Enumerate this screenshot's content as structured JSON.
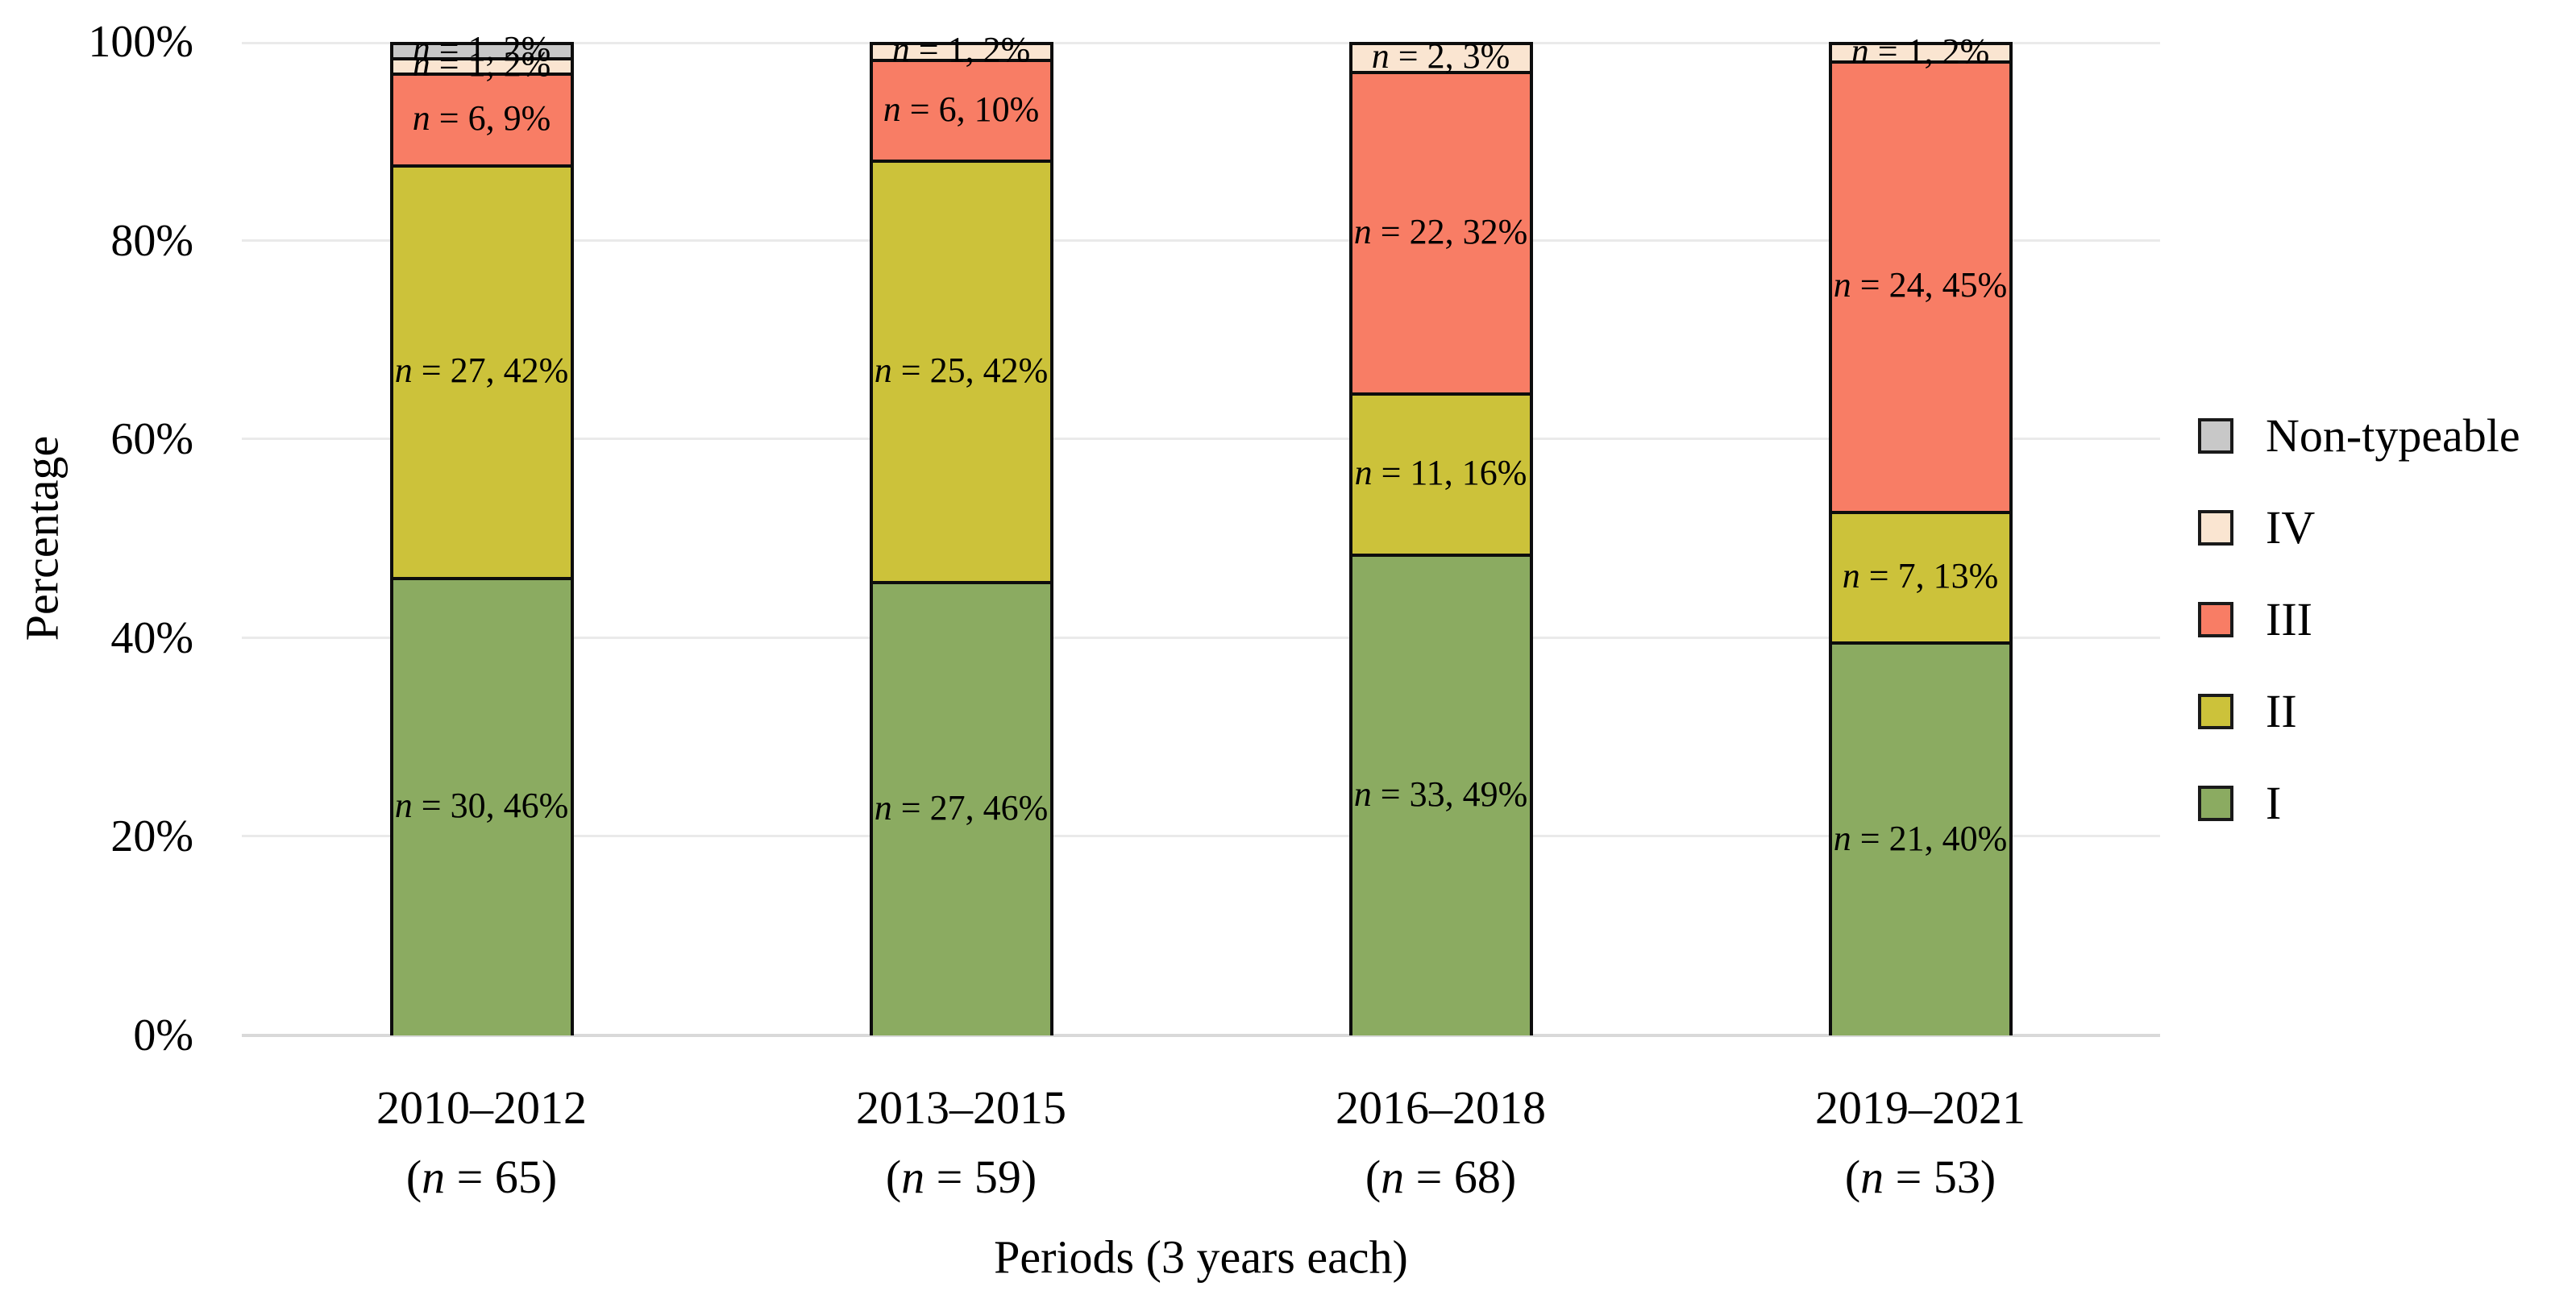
{
  "figure": {
    "background": "#ffffff",
    "grid_color": "#eaeaea",
    "axis_line_color": "#d9d9d9",
    "bar_border_color": "#0d0d0d"
  },
  "chart_data": {
    "type": "bar",
    "stacked": true,
    "percent_stacked": true,
    "title": "",
    "xlabel": "Periods (3 years each)",
    "ylabel": "Percentage",
    "y_ticks": [
      "0%",
      "20%",
      "40%",
      "60%",
      "80%",
      "100%"
    ],
    "ylim": [
      0,
      100
    ],
    "grid": "horizontal lines every 20%",
    "legend_position": "right",
    "legend_order": [
      "Non-typeable",
      "IV",
      "III",
      "II",
      "I"
    ],
    "segment_label_format": "n = {n}, {pct}",
    "category_sublabel_format": "(n = {n})",
    "categories": [
      {
        "period": "2010–2012",
        "total_n": 65
      },
      {
        "period": "2013–2015",
        "total_n": 59
      },
      {
        "period": "2016–2018",
        "total_n": 68
      },
      {
        "period": "2019–2021",
        "total_n": 53
      }
    ],
    "series": [
      {
        "name": "I",
        "color": "#8bab61",
        "values": [
          {
            "n": 30,
            "pct": "46%"
          },
          {
            "n": 27,
            "pct": "46%"
          },
          {
            "n": 33,
            "pct": "49%"
          },
          {
            "n": 21,
            "pct": "40%"
          }
        ]
      },
      {
        "name": "II",
        "color": "#ccc23a",
        "values": [
          {
            "n": 27,
            "pct": "42%"
          },
          {
            "n": 25,
            "pct": "42%"
          },
          {
            "n": 11,
            "pct": "16%"
          },
          {
            "n": 7,
            "pct": "13%"
          }
        ]
      },
      {
        "name": "III",
        "color": "#f87d65",
        "values": [
          {
            "n": 6,
            "pct": "9%"
          },
          {
            "n": 6,
            "pct": "10%"
          },
          {
            "n": 22,
            "pct": "32%"
          },
          {
            "n": 24,
            "pct": "45%"
          }
        ]
      },
      {
        "name": "IV",
        "color": "#fae5d1",
        "values": [
          {
            "n": 1,
            "pct": "2%"
          },
          {
            "n": 1,
            "pct": "2%"
          },
          {
            "n": 2,
            "pct": "3%"
          },
          {
            "n": 1,
            "pct": "2%"
          }
        ]
      },
      {
        "name": "Non-typeable",
        "color": "#c8c8c8",
        "values": [
          {
            "n": 1,
            "pct": "2%"
          },
          {
            "n": 0,
            "pct": ""
          },
          {
            "n": 0,
            "pct": ""
          },
          {
            "n": 0,
            "pct": ""
          }
        ]
      }
    ]
  }
}
